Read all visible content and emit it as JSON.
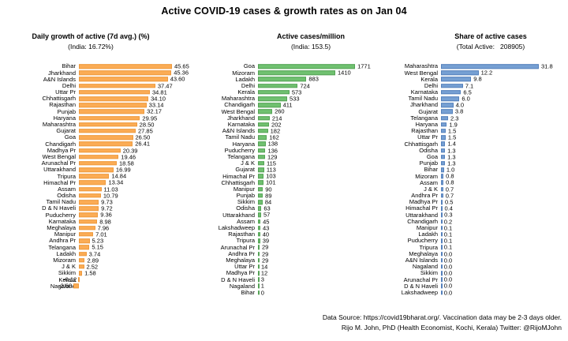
{
  "title": "Active COVID-19 cases & growth rates as on Jan 04",
  "footer": {
    "line1": "Data Source: https://covid19bharat.org/. Vaccination data may be 2-3 days older.",
    "line2": "Rijo M. John, PhD (Health Economist, Kochi, Kerala) Twitter: @RijoMJohn"
  },
  "colors": {
    "growth_fill": "#FBAC55",
    "growth_edge": "#EE9A3D",
    "cases_fill": "#70C170",
    "cases_edge": "#55A356",
    "share_fill": "#76A0D3",
    "share_edge": "#5581BC",
    "background": "#FFFFFF",
    "text": "#000000"
  },
  "chart_data": [
    {
      "type": "bar",
      "orientation": "horizontal",
      "title": "Daily growth of active (7d avg.) (%)",
      "subtitle": "(India: 16.72%)",
      "india_reference": 16.72,
      "legend": "none",
      "grid": false,
      "categories": [
        "Bihar",
        "Jharkhand",
        "A&N Islands",
        "Delhi",
        "Uttar Pr",
        "Chhattisgarh",
        "Rajasthan",
        "Punjab",
        "Haryana",
        "Maharashtra",
        "Gujarat",
        "Goa",
        "Chandigarh",
        "Madhya Pr",
        "West Bengal",
        "Arunachal Pr",
        "Uttarakhand",
        "Tripura",
        "Himachal Pr",
        "Assam",
        "Odisha",
        "Tamil Nadu",
        "D & N Haveli",
        "Puducherry",
        "Karnataka",
        "Meghalaya",
        "Manipur",
        "Andhra Pr",
        "Telangana",
        "Ladakh",
        "Mizoram",
        "J & K",
        "Sikkim",
        "Kerala",
        "Nagaland"
      ],
      "values": [
        45.65,
        45.36,
        43.6,
        37.47,
        34.81,
        34.1,
        33.14,
        32.17,
        29.95,
        28.5,
        27.85,
        26.5,
        26.41,
        20.39,
        19.46,
        18.58,
        16.99,
        14.84,
        13.34,
        11.03,
        10.79,
        9.73,
        9.72,
        9.36,
        8.98,
        7.96,
        7.01,
        5.23,
        5.15,
        3.74,
        2.89,
        2.52,
        1.58,
        -0.12,
        -2.6
      ],
      "value_labels": [
        "45.65",
        "45.36",
        "43.60",
        "37.47",
        "34.81",
        "34.10",
        "33.14",
        "32.17",
        "29.95",
        "28.50",
        "27.85",
        "26.50",
        "26.41",
        "20.39",
        "19.46",
        "18.58",
        "16.99",
        "14.84",
        "13.34",
        "11.03",
        "10.79",
        "9.73",
        "9.72",
        "9.36",
        "8.98",
        "7.96",
        "7.01",
        "5.23",
        "5.15",
        "3.74",
        "2.89",
        "2.52",
        "1.58",
        "-0.12",
        "-2.60"
      ],
      "xlim": [
        -3,
        48
      ]
    },
    {
      "type": "bar",
      "orientation": "horizontal",
      "title": "Active cases/million",
      "subtitle": "(India: 153.5)",
      "india_reference": 153.5,
      "legend": "none",
      "grid": false,
      "categories": [
        "Goa",
        "Mizoram",
        "Ladakh",
        "Delhi",
        "Kerala",
        "Maharashtra",
        "Chandigarh",
        "West Bengal",
        "Jharkhand",
        "Karnataka",
        "A&N Islands",
        "Tamil Nadu",
        "Haryana",
        "Puducherry",
        "Telangana",
        "J & K",
        "Gujarat",
        "Himachal Pr",
        "Chhattisgarh",
        "Manipur",
        "Punjab",
        "Sikkim",
        "Odisha",
        "Uttarakhand",
        "Assam",
        "Lakshadweep",
        "Rajasthan",
        "Tripura",
        "Arunachal Pr",
        "Andhra Pr",
        "Meghalaya",
        "Uttar Pr",
        "Madhya Pr",
        "D & N Haveli",
        "Nagaland",
        "Bihar"
      ],
      "values": [
        1771,
        1410,
        883,
        724,
        573,
        533,
        411,
        260,
        214,
        202,
        182,
        162,
        138,
        136,
        129,
        115,
        113,
        103,
        101,
        90,
        89,
        84,
        63,
        57,
        45,
        43,
        40,
        39,
        29,
        29,
        29,
        14,
        12,
        3,
        1,
        0
      ],
      "value_labels": [
        "1771",
        "1410",
        "883",
        "724",
        "573",
        "533",
        "411",
        "260",
        "214",
        "202",
        "182",
        "162",
        "138",
        "136",
        "129",
        "115",
        "113",
        "103",
        "101",
        "90",
        "89",
        "84",
        "63",
        "57",
        "45",
        "43",
        "40",
        "39",
        "29",
        "29",
        "29",
        "14",
        "12",
        "3",
        "1",
        "0"
      ],
      "xlim": [
        0,
        1900
      ]
    },
    {
      "type": "bar",
      "orientation": "horizontal",
      "title": "Share of active cases",
      "subtitle": "(Total Active:   208905)",
      "total_active": 208905,
      "legend": "none",
      "grid": false,
      "categories": [
        "Maharashtra",
        "West Bengal",
        "Kerala",
        "Delhi",
        "Karnataka",
        "Tamil Nadu",
        "Jharkhand",
        "Gujarat",
        "Telangana",
        "Haryana",
        "Rajasthan",
        "Uttar Pr",
        "Chhattisgarh",
        "Odisha",
        "Goa",
        "Punjab",
        "Bihar",
        "Mizoram",
        "Assam",
        "J & K",
        "Andhra Pr",
        "Madhya Pr",
        "Himachal Pr",
        "Uttarakhand",
        "Chandigarh",
        "Manipur",
        "Ladakh",
        "Puducherry",
        "Tripura",
        "Meghalaya",
        "A&N Islands",
        "Nagaland",
        "Sikkim",
        "Arunachal Pr",
        "D & N Haveli",
        "Lakshadweep"
      ],
      "values": [
        31.8,
        12.2,
        9.8,
        7.1,
        6.5,
        6.0,
        4.0,
        3.8,
        2.3,
        1.9,
        1.5,
        1.5,
        1.4,
        1.3,
        1.3,
        1.3,
        1.0,
        0.8,
        0.8,
        0.7,
        0.7,
        0.5,
        0.4,
        0.3,
        0.2,
        0.1,
        0.1,
        0.1,
        0.1,
        0.0,
        0.0,
        0.0,
        0.0,
        0.0,
        0.0,
        0.0
      ],
      "value_labels": [
        "31.8",
        "12.2",
        "9.8",
        "7.1",
        "6.5",
        "6.0",
        "4.0",
        "3.8",
        "2.3",
        "1.9",
        "1.5",
        "1.5",
        "1.4",
        "1.3",
        "1.3",
        "1.3",
        "1.0",
        "0.8",
        "0.8",
        "0.7",
        "0.7",
        "0.5",
        "0.4",
        "0.3",
        "0.2",
        "0.1",
        "0.1",
        "0.1",
        "0.1",
        "0.0",
        "0.0",
        "0.0",
        "0.0",
        "0.0",
        "0.0",
        "0.0"
      ],
      "xlim": [
        0,
        34
      ]
    }
  ]
}
